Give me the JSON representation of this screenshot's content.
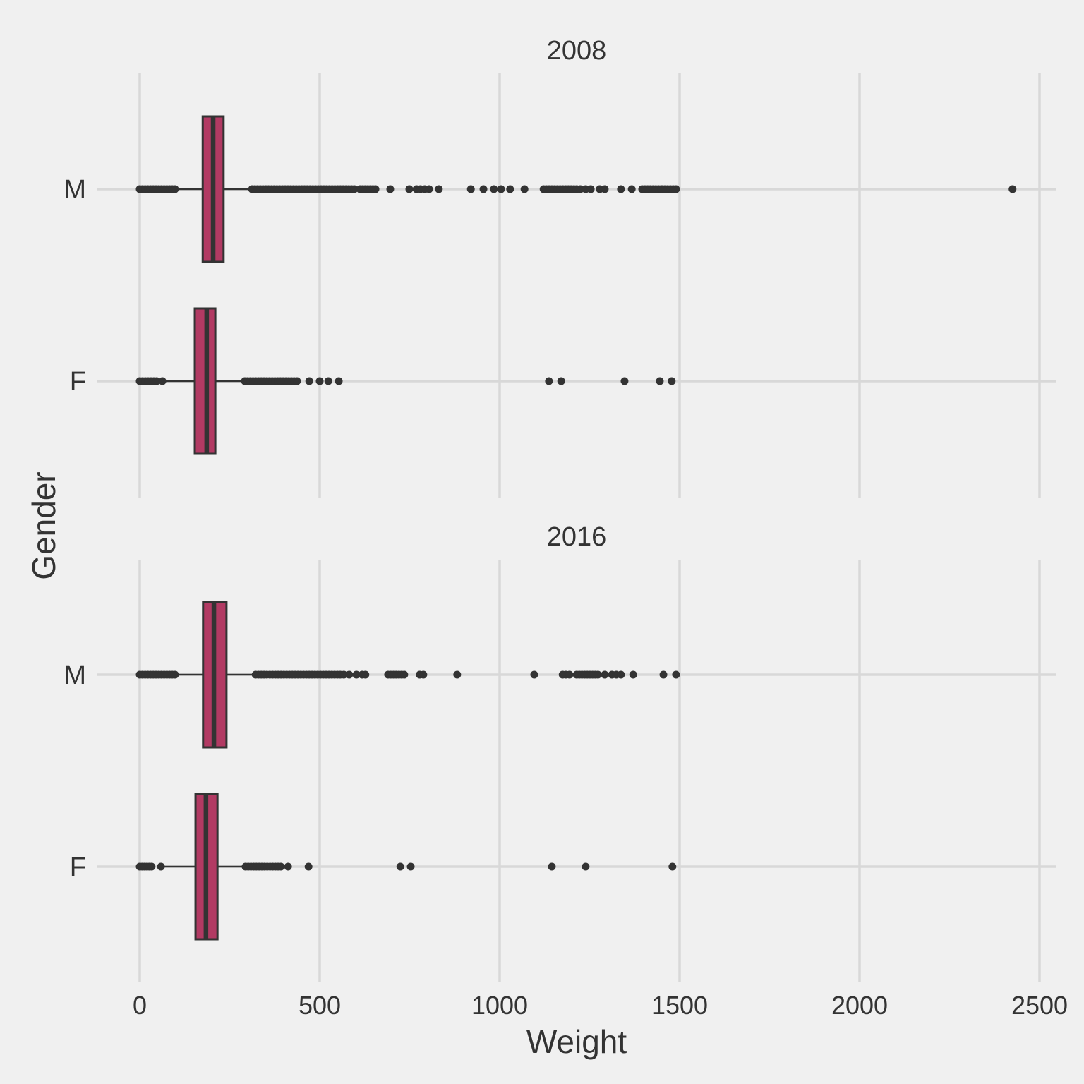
{
  "figure": {
    "background": "#F0F0F0"
  },
  "chart_data": {
    "type": "boxplot",
    "orientation": "horizontal",
    "xlabel": "Weight",
    "ylabel": "Gender",
    "x_ticks": [
      0,
      500,
      1000,
      1500,
      2000,
      2500
    ],
    "xlim": [
      -120,
      2550
    ],
    "y_categories": [
      "M",
      "F"
    ],
    "grid": true,
    "legend": "none",
    "colors": {
      "box_fill": "#B23A63",
      "box_stroke": "#333333",
      "median": "#333333",
      "whisker": "#333333",
      "point": "#333333",
      "grid": "#D8D8D8",
      "background": "#F0F0F0",
      "text": "#333333"
    },
    "facets": [
      {
        "title": "2008",
        "groups": [
          {
            "label": "M",
            "stats": {
              "whisker_min": 98,
              "q1": 175,
              "median": 204,
              "q3": 233,
              "whisker_max": 312
            },
            "outlier_runs": [
              [
                0,
                98
              ],
              [
                312,
                596
              ],
              [
                612,
                655
              ],
              [
                1122,
                1214
              ],
              [
                1396,
                1449
              ],
              [
                1451,
                1490
              ]
            ],
            "outliers": [
              696,
              749,
              769,
              780,
              792,
              804,
              831,
              920,
              955,
              984,
              1004,
              1029,
              1069,
              1224,
              1239,
              1253,
              1278,
              1292,
              1337,
              1367,
              2425
            ]
          },
          {
            "label": "F",
            "stats": {
              "whisker_min": 65,
              "q1": 153,
              "median": 186,
              "q3": 210,
              "whisker_max": 292
            },
            "outlier_runs": [
              [
                0,
                47
              ],
              [
                292,
                429
              ]
            ],
            "outliers": [
              63,
              437,
              471,
              500,
              524,
              553,
              1137,
              1171,
              1347,
              1445,
              1478
            ]
          }
        ]
      },
      {
        "title": "2016",
        "groups": [
          {
            "label": "M",
            "stats": {
              "whisker_min": 98,
              "q1": 176,
              "median": 206,
              "q3": 241,
              "whisker_max": 322
            },
            "outlier_runs": [
              [
                0,
                98
              ],
              [
                322,
                557
              ],
              [
                690,
                735
              ],
              [
                1214,
                1273
              ]
            ],
            "outliers": [
              567,
              582,
              602,
              618,
              627,
              778,
              788,
              882,
              1096,
              1175,
              1184,
              1194,
              1292,
              1312,
              1324,
              1337,
              1371,
              1455,
              1490
            ]
          },
          {
            "label": "F",
            "stats": {
              "whisker_min": 69,
              "q1": 155,
              "median": 184,
              "q3": 216,
              "whisker_max": 294
            },
            "outlier_runs": [
              [
                0,
                33
              ],
              [
                294,
                392
              ]
            ],
            "outliers": [
              59,
              412,
              469,
              724,
              753,
              1145,
              1239,
              1480
            ]
          }
        ]
      }
    ]
  }
}
